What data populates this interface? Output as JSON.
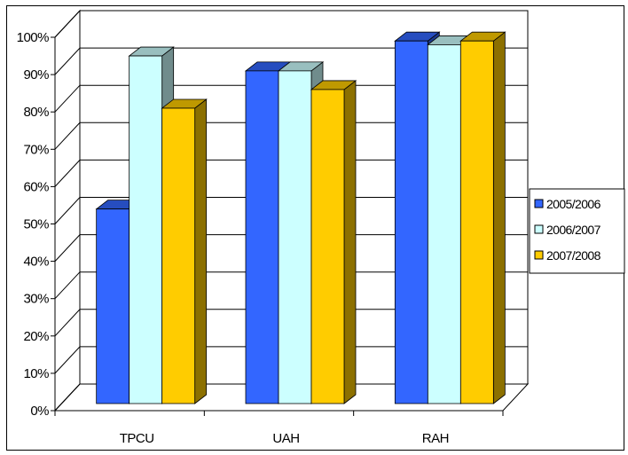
{
  "chart_data": {
    "type": "bar",
    "categories": [
      "TPCU",
      "UAH",
      "RAH"
    ],
    "series": [
      {
        "name": "2005/2006",
        "values": [
          54,
          91,
          99
        ],
        "color": "#3366FF"
      },
      {
        "name": "2006/2007",
        "values": [
          95,
          91,
          98
        ],
        "color": "#CCFFFF"
      },
      {
        "name": "2007/2008",
        "values": [
          81,
          86,
          99
        ],
        "color": "#FFCC00"
      }
    ],
    "y_ticks": [
      "0%",
      "10%",
      "20%",
      "30%",
      "40%",
      "50%",
      "60%",
      "70%",
      "80%",
      "90%",
      "100%"
    ],
    "ylim": [
      0,
      100
    ],
    "grid": true,
    "legend_position": "right",
    "style": "3d-clustered-column"
  }
}
